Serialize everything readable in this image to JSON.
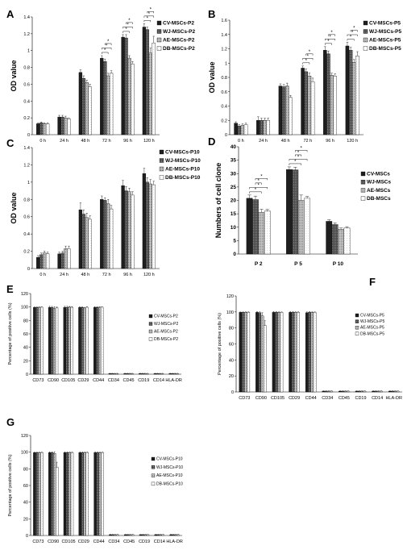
{
  "colors": {
    "CV": "#1e1e1e",
    "WJ": "#5a5a5a",
    "AE": "#a8a8a8",
    "DB": "#ffffff",
    "stroke": "#000000"
  },
  "chart_data": [
    {
      "panel": "A",
      "type": "bar",
      "categories": [
        "0 h",
        "24 h",
        "48 h",
        "72 h",
        "96 h",
        "120 h"
      ],
      "ylabel": "OD value",
      "ylim": [
        0,
        1.4
      ],
      "yticks": [
        0,
        0.2,
        0.4,
        0.6,
        0.8,
        1,
        1.2,
        1.4
      ],
      "series": [
        {
          "name": "CV-MSCs-P2",
          "key": "CV",
          "values": [
            0.13,
            0.21,
            0.74,
            0.91,
            1.16,
            1.28
          ],
          "errors": [
            0.01,
            0.02,
            0.03,
            0.03,
            0.03,
            0.04
          ]
        },
        {
          "name": "WJ-MSCs-P2",
          "key": "WJ",
          "values": [
            0.14,
            0.21,
            0.67,
            0.87,
            1.15,
            1.25
          ],
          "errors": [
            0.01,
            0.02,
            0.03,
            0.03,
            0.04,
            0.03
          ]
        },
        {
          "name": "AE-MSCs-P2",
          "key": "AE",
          "values": [
            0.13,
            0.2,
            0.62,
            0.7,
            0.91,
            0.97
          ],
          "errors": [
            0.01,
            0.02,
            0.03,
            0.03,
            0.03,
            0.06
          ]
        },
        {
          "name": "DB-MSCs-P2",
          "key": "DB",
          "values": [
            0.13,
            0.19,
            0.57,
            0.73,
            0.84,
            1.09
          ],
          "errors": [
            0.01,
            0.01,
            0.03,
            0.03,
            0.03,
            0.08
          ]
        }
      ],
      "significance": "*",
      "legend": "right"
    },
    {
      "panel": "B",
      "type": "bar",
      "categories": [
        "0 h",
        "24 h",
        "48 h",
        "72 h",
        "96 h",
        "120 h"
      ],
      "ylabel": "OD value",
      "ylim": [
        0,
        1.6
      ],
      "yticks": [
        0,
        0.2,
        0.4,
        0.6,
        0.8,
        1,
        1.2,
        1.4,
        1.6
      ],
      "series": [
        {
          "name": "CV-MSCs-P5",
          "key": "CV",
          "values": [
            0.16,
            0.2,
            0.68,
            0.93,
            1.18,
            1.24
          ],
          "errors": [
            0.02,
            0.05,
            0.03,
            0.03,
            0.05,
            0.05
          ]
        },
        {
          "name": "WJ-MSCs-P5",
          "key": "WJ",
          "values": [
            0.12,
            0.2,
            0.67,
            0.88,
            1.13,
            1.18
          ],
          "errors": [
            0.02,
            0.03,
            0.03,
            0.04,
            0.04,
            0.04
          ]
        },
        {
          "name": "AE-MSCs-P5",
          "key": "AE",
          "values": [
            0.13,
            0.2,
            0.68,
            0.82,
            0.83,
            1.01
          ],
          "errors": [
            0.02,
            0.03,
            0.04,
            0.04,
            0.03,
            0.04
          ]
        },
        {
          "name": "DB-MSCs-P5",
          "key": "DB",
          "values": [
            0.14,
            0.2,
            0.52,
            0.74,
            0.82,
            1.1
          ],
          "errors": [
            0.02,
            0.03,
            0.03,
            0.05,
            0.03,
            0.06
          ]
        }
      ],
      "significance": "*",
      "legend": "right"
    },
    {
      "panel": "C",
      "type": "bar",
      "categories": [
        "0 h",
        "24 h",
        "48 h",
        "72 h",
        "96 h",
        "120 h"
      ],
      "ylabel": "OD value",
      "ylim": [
        0,
        1.4
      ],
      "yticks": [
        0,
        0.2,
        0.4,
        0.6,
        0.8,
        1,
        1.2,
        1.4
      ],
      "series": [
        {
          "name": "CV-MSCs-P10",
          "key": "CV",
          "values": [
            0.13,
            0.17,
            0.68,
            0.8,
            0.96,
            1.1
          ],
          "errors": [
            0.02,
            0.02,
            0.08,
            0.04,
            0.06,
            0.06
          ]
        },
        {
          "name": "WJ-MSCs-P10",
          "key": "WJ",
          "values": [
            0.16,
            0.18,
            0.63,
            0.79,
            0.9,
            1.0
          ],
          "errors": [
            0.02,
            0.02,
            0.05,
            0.03,
            0.05,
            0.05
          ]
        },
        {
          "name": "AE-MSCs-P10",
          "key": "AE",
          "values": [
            0.18,
            0.23,
            0.59,
            0.75,
            0.89,
            0.98
          ],
          "errors": [
            0.02,
            0.03,
            0.05,
            0.05,
            0.04,
            0.05
          ]
        },
        {
          "name": "DB-MSCs-P10",
          "key": "DB",
          "values": [
            0.17,
            0.23,
            0.57,
            0.69,
            0.85,
            0.97
          ],
          "errors": [
            0.02,
            0.03,
            0.04,
            0.04,
            0.04,
            0.04
          ]
        }
      ],
      "legend": "right"
    },
    {
      "panel": "D",
      "type": "bar",
      "categories": [
        "P 2",
        "P 5",
        "P 10"
      ],
      "ylabel": "Numbers of cell clone",
      "ylim": [
        0,
        40
      ],
      "yticks": [
        0,
        5,
        10,
        15,
        20,
        25,
        30,
        35,
        40
      ],
      "series": [
        {
          "name": "CV-MSCs",
          "key": "CV",
          "values": [
            20.8,
            31.5,
            12.2
          ],
          "errors": [
            1.2,
            1.0,
            0.6
          ]
        },
        {
          "name": "WJ-MSCs",
          "key": "WJ",
          "values": [
            20.3,
            31.4,
            11.0
          ],
          "errors": [
            1.3,
            1.0,
            0.6
          ]
        },
        {
          "name": "AE-MSCs",
          "key": "AE",
          "values": [
            15.5,
            20.0,
            9.2
          ],
          "errors": [
            1.2,
            2.0,
            0.5
          ]
        },
        {
          "name": "DB-MSCs",
          "key": "DB",
          "values": [
            16.0,
            20.8,
            9.7
          ],
          "errors": [
            0.6,
            0.7,
            0.5
          ]
        }
      ],
      "significance": "*",
      "legend": "right"
    },
    {
      "panel": "E",
      "type": "bar",
      "categories": [
        "CD73",
        "CD90",
        "CD105",
        "CD29",
        "CD44",
        "CD34",
        "CD45",
        "CD19",
        "CD14",
        "HLA-DR"
      ],
      "ylabel": "Percentage of positive cells (%)",
      "ylim": [
        0,
        120
      ],
      "yticks": [
        0,
        20,
        40,
        60,
        80,
        100,
        120
      ],
      "series": [
        {
          "name": "CV-MSCs-P2",
          "key": "CV",
          "values": [
            99.5,
            99.5,
            99.5,
            99.4,
            99.5,
            1.0,
            1.0,
            1.0,
            1.0,
            1.0
          ],
          "errors": [
            0.5,
            1.5,
            1.5,
            1.0,
            1.0,
            0.3,
            0.3,
            0.3,
            0.3,
            0.3
          ]
        },
        {
          "name": "WJ-MSCs-P2",
          "key": "WJ",
          "values": [
            99.5,
            99.4,
            99.5,
            99.4,
            99.5,
            1.0,
            1.0,
            1.0,
            1.0,
            1.0
          ],
          "errors": [
            0.5,
            1.5,
            1.5,
            1.0,
            1.0,
            0.3,
            0.3,
            0.3,
            0.3,
            0.3
          ]
        },
        {
          "name": "AE-MSCs-P2",
          "key": "AE",
          "values": [
            99.6,
            97.5,
            99.8,
            98.5,
            99.7,
            1.0,
            1.0,
            1.0,
            1.0,
            1.0
          ],
          "errors": [
            0.5,
            3.0,
            1.0,
            1.0,
            0.5,
            0.3,
            0.3,
            0.3,
            0.3,
            0.3
          ]
        },
        {
          "name": "DB-MSCs-P2",
          "key": "DB",
          "values": [
            99.7,
            99.0,
            99.6,
            99.6,
            99.7,
            1.0,
            1.0,
            1.0,
            1.0,
            1.0
          ],
          "errors": [
            0.5,
            1.0,
            1.0,
            1.0,
            0.5,
            0.3,
            0.3,
            0.3,
            0.3,
            0.3
          ]
        }
      ],
      "legend": "right"
    },
    {
      "panel": "F",
      "type": "bar",
      "categories": [
        "CD73",
        "CD90",
        "CD105",
        "CD29",
        "CD44",
        "CD34",
        "CD45",
        "CD19",
        "CD14",
        "HLA-DR"
      ],
      "ylabel": "Percentage of positive cells (%)",
      "ylim": [
        0,
        120
      ],
      "yticks": [
        0,
        20,
        40,
        60,
        80,
        100,
        120
      ],
      "series": [
        {
          "name": "CV-MSCs-P5",
          "key": "CV",
          "values": [
            99.5,
            99.5,
            99.5,
            99.5,
            99.0,
            1.0,
            1.0,
            1.0,
            1.0,
            1.0
          ],
          "errors": [
            0.5,
            1.0,
            1.0,
            1.0,
            1.0,
            0.3,
            0.3,
            0.3,
            0.3,
            0.3
          ]
        },
        {
          "name": "WJ-MSCs-P5",
          "key": "WJ",
          "values": [
            99.5,
            99.0,
            99.5,
            99.5,
            99.5,
            1.0,
            1.0,
            1.0,
            1.0,
            1.0
          ],
          "errors": [
            0.5,
            1.0,
            1.0,
            1.0,
            1.0,
            0.3,
            0.3,
            0.3,
            0.3,
            0.3
          ]
        },
        {
          "name": "AE-MSCs-P5",
          "key": "AE",
          "values": [
            99.6,
            95.0,
            99.6,
            99.6,
            99.6,
            1.0,
            1.0,
            1.0,
            1.0,
            1.0
          ],
          "errors": [
            0.5,
            4.0,
            0.5,
            0.5,
            0.5,
            0.3,
            0.3,
            0.3,
            0.3,
            0.3
          ]
        },
        {
          "name": "DB-MSCs-P5",
          "key": "DB",
          "values": [
            99.6,
            83.0,
            99.5,
            99.6,
            99.6,
            1.0,
            1.0,
            1.0,
            1.0,
            1.0
          ],
          "errors": [
            0.5,
            6.0,
            0.5,
            0.5,
            0.5,
            0.3,
            0.3,
            0.3,
            0.3,
            0.3
          ]
        }
      ],
      "legend": "right"
    },
    {
      "panel": "G",
      "type": "bar",
      "categories": [
        "CD73",
        "CD90",
        "CD105",
        "CD29",
        "CD44",
        "CD34",
        "CD45",
        "CD19",
        "CD14",
        "HLA-DR"
      ],
      "ylabel": "Percentage of positive cells (%)",
      "ylim": [
        0,
        120
      ],
      "yticks": [
        0,
        20,
        40,
        60,
        80,
        100,
        120
      ],
      "series": [
        {
          "name": "CV-MSCs-P10",
          "key": "CV",
          "values": [
            99.5,
            99.5,
            99.5,
            99.5,
            99.5,
            1.0,
            1.0,
            1.0,
            1.0,
            1.0
          ],
          "errors": [
            0.5,
            1.0,
            1.0,
            1.0,
            1.0,
            0.3,
            0.3,
            0.3,
            0.3,
            0.3
          ]
        },
        {
          "name": "WJ-MSCs-P10",
          "key": "WJ",
          "values": [
            99.5,
            99.5,
            99.5,
            99.5,
            99.5,
            1.0,
            1.0,
            1.0,
            1.0,
            1.0
          ],
          "errors": [
            0.5,
            1.0,
            1.0,
            1.0,
            1.0,
            0.3,
            0.3,
            0.3,
            0.3,
            0.3
          ]
        },
        {
          "name": "AE-MSCs-P10",
          "key": "AE",
          "values": [
            99.5,
            98.5,
            99.6,
            99.6,
            99.5,
            1.0,
            1.0,
            1.0,
            1.0,
            1.0
          ],
          "errors": [
            0.5,
            2.0,
            0.5,
            0.5,
            0.5,
            0.3,
            0.3,
            0.3,
            0.3,
            0.3
          ]
        },
        {
          "name": "DB-MSCs-P10",
          "key": "DB",
          "values": [
            99.6,
            82.0,
            99.6,
            99.6,
            99.6,
            1.0,
            1.0,
            1.0,
            1.0,
            1.0
          ],
          "errors": [
            0.5,
            6.0,
            0.5,
            0.5,
            0.5,
            0.3,
            0.3,
            0.3,
            0.3,
            0.3
          ]
        }
      ],
      "legend": "right"
    }
  ]
}
